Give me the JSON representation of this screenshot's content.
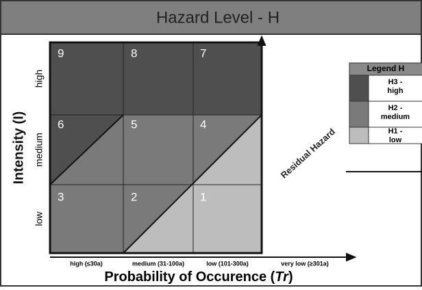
{
  "header": {
    "title": "Hazard Level - H"
  },
  "y_axis": {
    "title": "Intensity (I)",
    "levels": [
      "high",
      "medium",
      "low"
    ]
  },
  "x_axis": {
    "title_main": "Probability of Occurence (",
    "title_italic": "Tr",
    "title_end": ")",
    "levels": [
      "high (≤30a)",
      "medium (31-100a)",
      "low (101-300a)",
      "very low (≥301a)"
    ]
  },
  "cells": [
    "9",
    "8",
    "7",
    "6",
    "5",
    "4",
    "3",
    "2",
    "1"
  ],
  "annotation": "Residual Hazard",
  "legend": {
    "title": "Legend H",
    "items": [
      {
        "lines": [
          "H3 -",
          "high"
        ]
      },
      {
        "lines": [
          "H2 -",
          "medium"
        ]
      },
      {
        "lines": [
          "H1 -",
          "low"
        ]
      }
    ]
  }
}
